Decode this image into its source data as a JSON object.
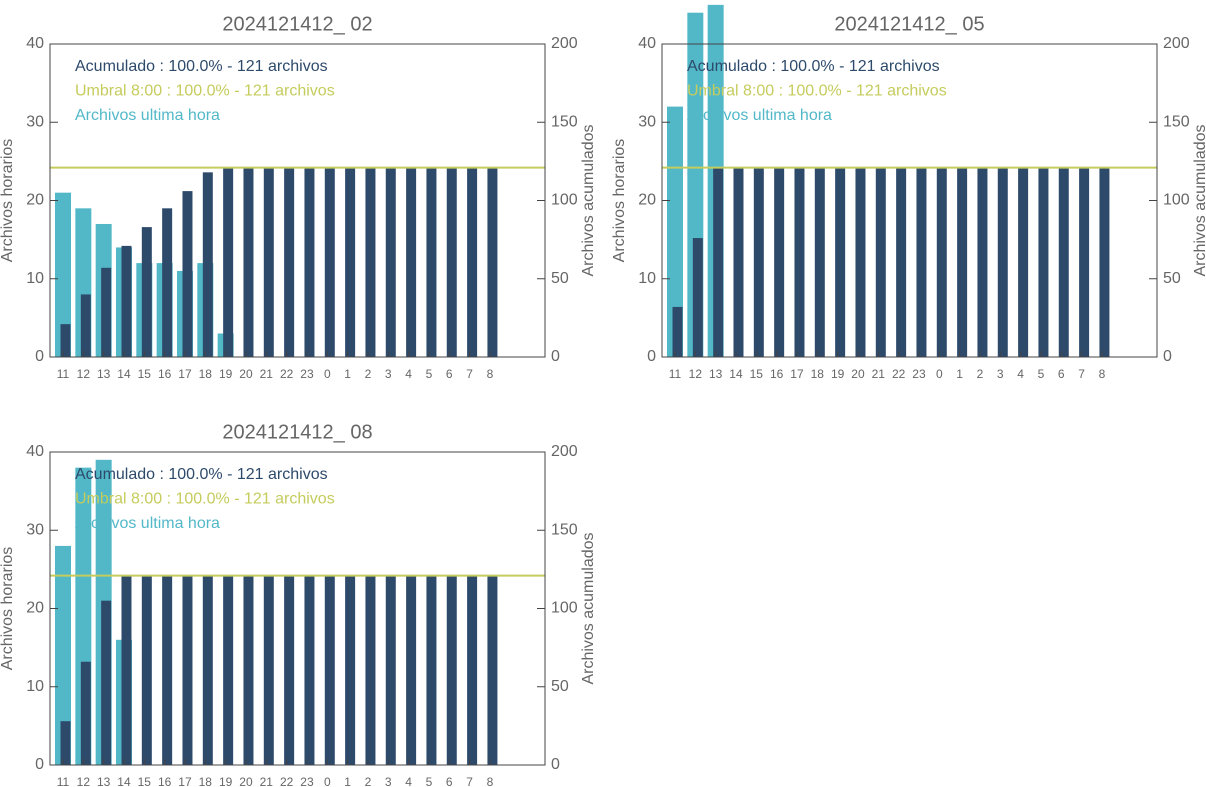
{
  "chart_data": [
    {
      "type": "bar",
      "title": "2024121412_ 02",
      "categories": [
        "11",
        "12",
        "13",
        "14",
        "15",
        "16",
        "17",
        "18",
        "19",
        "20",
        "21",
        "22",
        "23",
        "0",
        "1",
        "2",
        "3",
        "4",
        "5",
        "6",
        "7",
        "8"
      ],
      "series": [
        {
          "name": "Acumulado : 100.0% - 121 archivos",
          "color": "#2d4a6b",
          "axis": "y2",
          "values": [
            21,
            40,
            57,
            71,
            83,
            95,
            106,
            118,
            121,
            121,
            121,
            121,
            121,
            121,
            121,
            121,
            121,
            121,
            121,
            121,
            121,
            121
          ]
        },
        {
          "name": "Archivos ultima hora",
          "color": "#52b8c8",
          "values": [
            21,
            19,
            17,
            14,
            12,
            12,
            11,
            12,
            3,
            0,
            0,
            0,
            0,
            0,
            0,
            0,
            0,
            0,
            0,
            0,
            0,
            0
          ]
        }
      ],
      "threshold": {
        "name": "Umbral 8:00 : 100.0% - 121 archivos",
        "color": "#c5cc5c",
        "value": 121,
        "axis": "y2"
      },
      "ylabel": "Archivos horarios",
      "y2label": "Archivos acumulados",
      "ylim": [
        0,
        40
      ],
      "yticks": [
        0,
        10,
        20,
        30,
        40
      ],
      "y2lim": [
        0,
        200
      ],
      "y2ticks": [
        0,
        50,
        100,
        150,
        200
      ]
    },
    {
      "type": "bar",
      "title": "2024121412_ 05",
      "categories": [
        "11",
        "12",
        "13",
        "14",
        "15",
        "16",
        "17",
        "18",
        "19",
        "20",
        "21",
        "22",
        "23",
        "0",
        "1",
        "2",
        "3",
        "4",
        "5",
        "6",
        "7",
        "8"
      ],
      "series": [
        {
          "name": "Acumulado : 100.0% - 121 archivos",
          "color": "#2d4a6b",
          "axis": "y2",
          "values": [
            32,
            76,
            121,
            121,
            121,
            121,
            121,
            121,
            121,
            121,
            121,
            121,
            121,
            121,
            121,
            121,
            121,
            121,
            121,
            121,
            121,
            121
          ]
        },
        {
          "name": "Archivos ultima hora",
          "color": "#52b8c8",
          "values": [
            32,
            44,
            45,
            0,
            0,
            0,
            0,
            0,
            0,
            0,
            0,
            0,
            0,
            0,
            0,
            0,
            0,
            0,
            0,
            0,
            0,
            0
          ]
        }
      ],
      "threshold": {
        "name": "Umbral 8:00 : 100.0% - 121 archivos",
        "color": "#c5cc5c",
        "value": 121,
        "axis": "y2"
      },
      "ylabel": "Archivos horarios",
      "y2label": "Archivos acumulados",
      "ylim": [
        0,
        40
      ],
      "yticks": [
        0,
        10,
        20,
        30,
        40
      ],
      "y2lim": [
        0,
        200
      ],
      "y2ticks": [
        0,
        50,
        100,
        150,
        200
      ]
    },
    {
      "type": "bar",
      "title": "2024121412_ 08",
      "categories": [
        "11",
        "12",
        "13",
        "14",
        "15",
        "16",
        "17",
        "18",
        "19",
        "20",
        "21",
        "22",
        "23",
        "0",
        "1",
        "2",
        "3",
        "4",
        "5",
        "6",
        "7",
        "8"
      ],
      "series": [
        {
          "name": "Acumulado : 100.0% - 121 archivos",
          "color": "#2d4a6b",
          "axis": "y2",
          "values": [
            28,
            66,
            105,
            121,
            121,
            121,
            121,
            121,
            121,
            121,
            121,
            121,
            121,
            121,
            121,
            121,
            121,
            121,
            121,
            121,
            121,
            121
          ]
        },
        {
          "name": "Archivos ultima hora",
          "color": "#52b8c8",
          "values": [
            28,
            38,
            39,
            16,
            0,
            0,
            0,
            0,
            0,
            0,
            0,
            0,
            0,
            0,
            0,
            0,
            0,
            0,
            0,
            0,
            0,
            0
          ]
        }
      ],
      "threshold": {
        "name": "Umbral 8:00 : 100.0% - 121 archivos",
        "color": "#c5cc5c",
        "value": 121,
        "axis": "y2"
      },
      "ylabel": "Archivos horarios",
      "y2label": "Archivos acumulados",
      "ylim": [
        0,
        40
      ],
      "yticks": [
        0,
        10,
        20,
        30,
        40
      ],
      "y2lim": [
        0,
        200
      ],
      "y2ticks": [
        0,
        50,
        100,
        150,
        200
      ]
    }
  ]
}
